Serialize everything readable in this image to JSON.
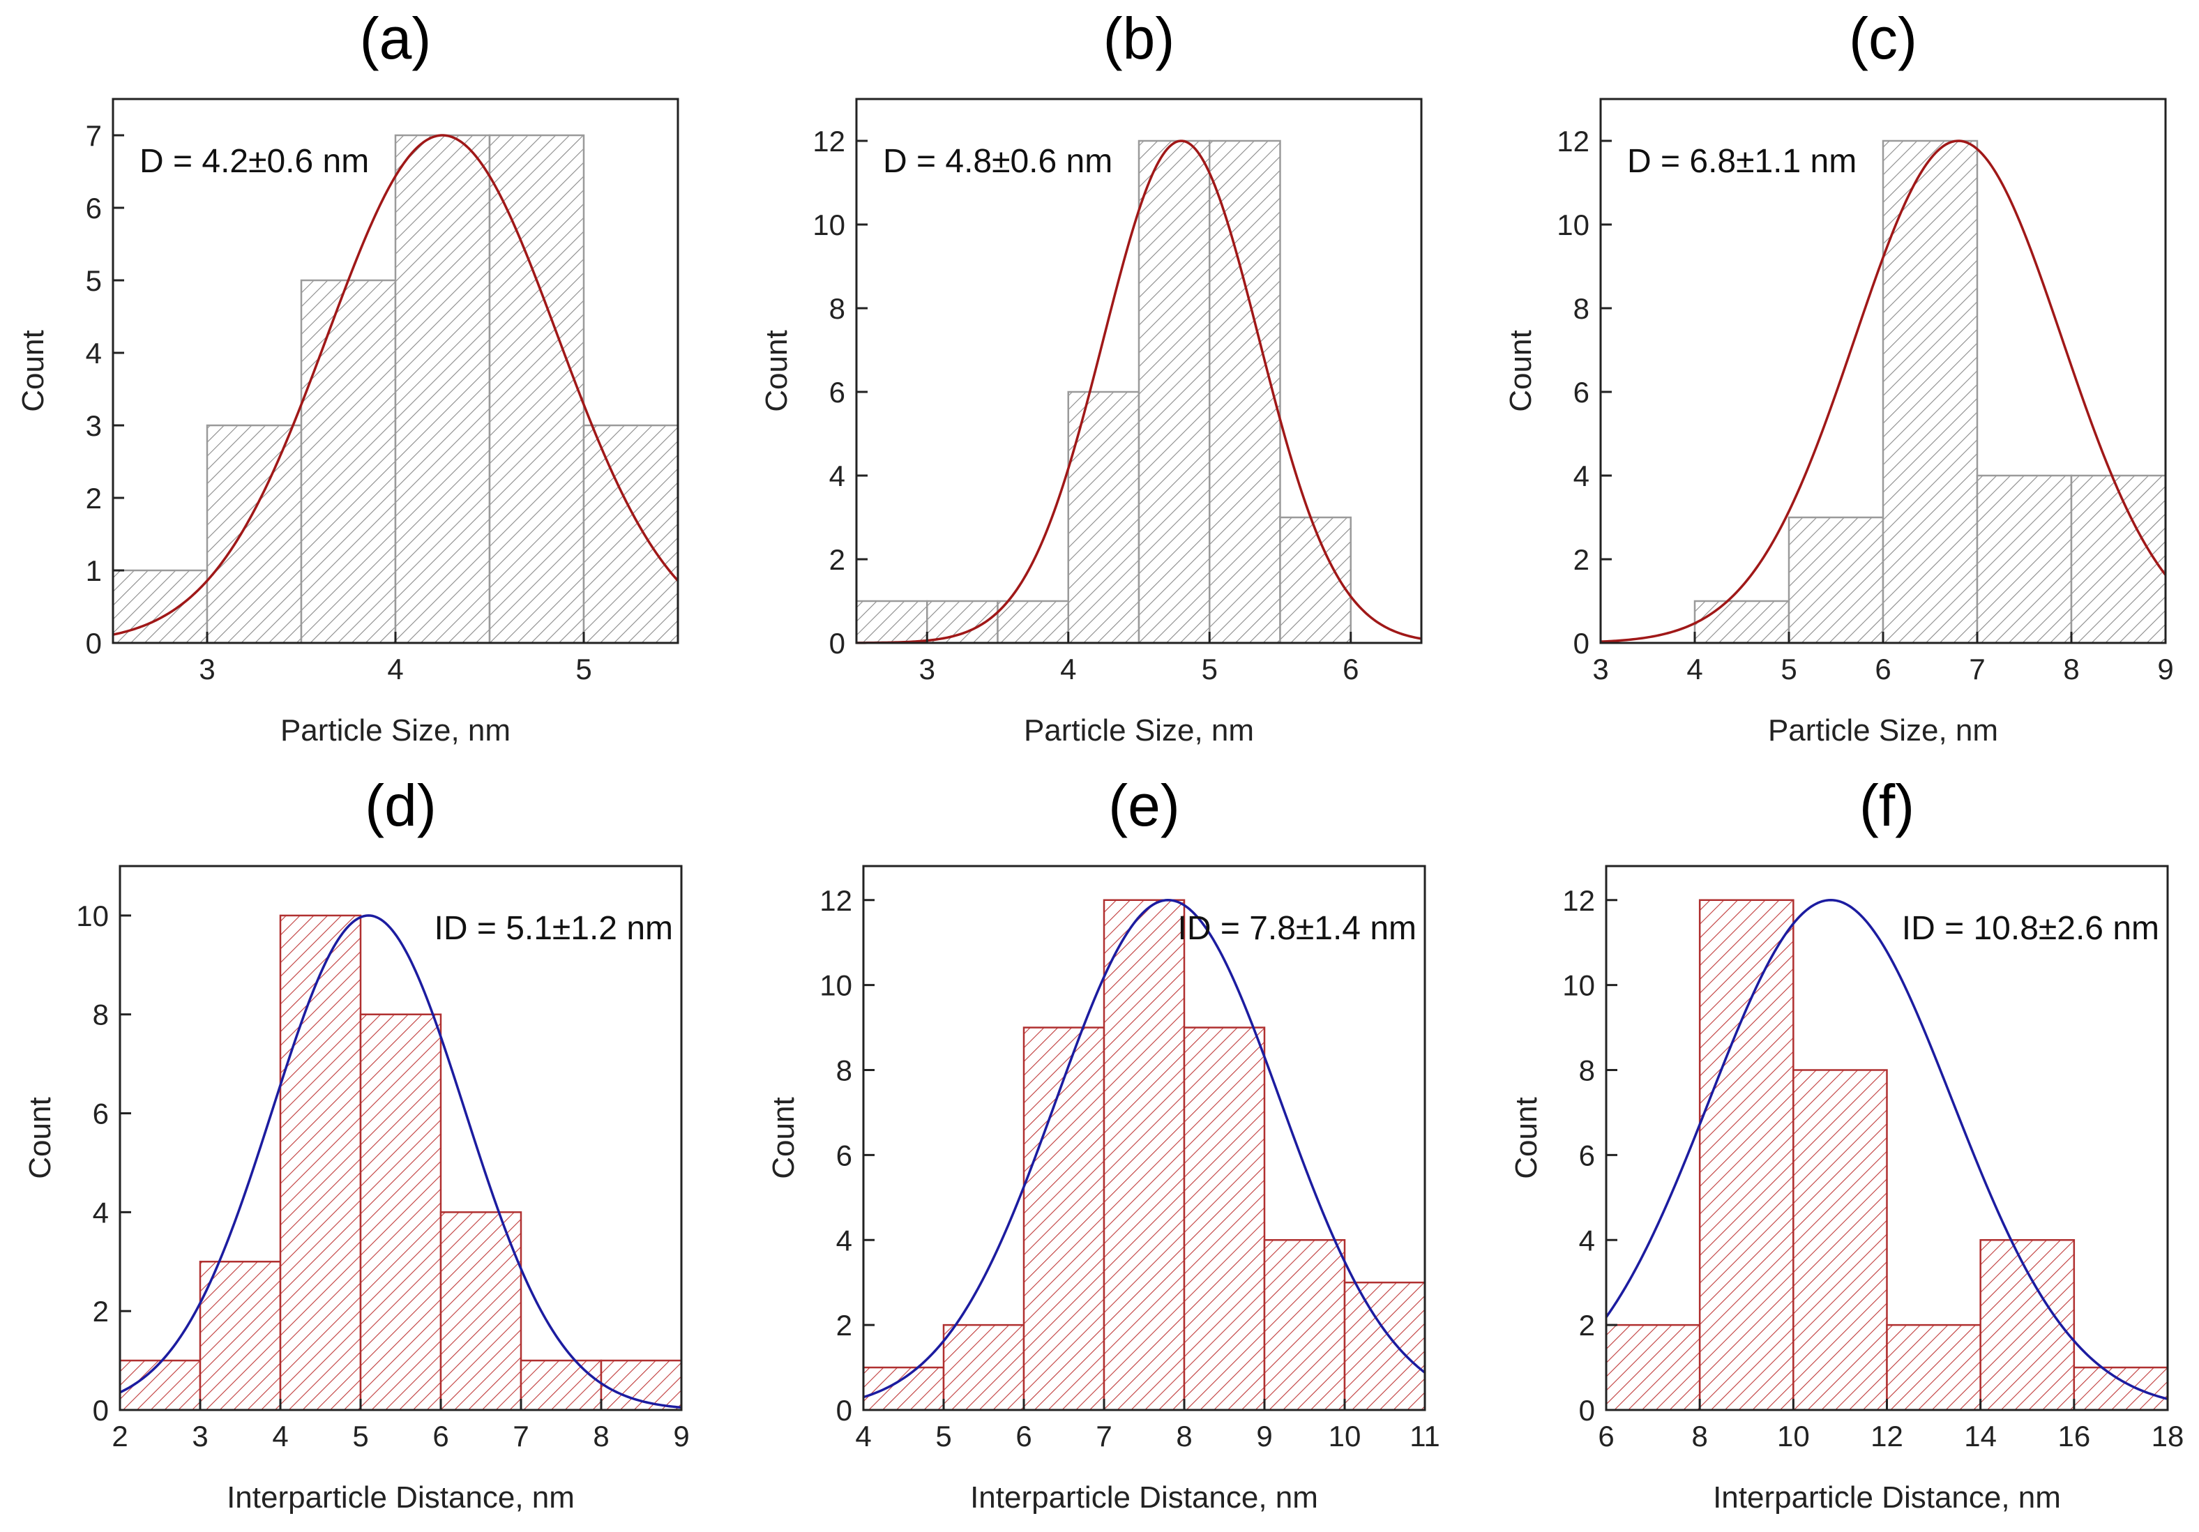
{
  "colors": {
    "gray_bar_edge": "#9a9a9a",
    "gray_hatch": "#8a8a8a",
    "red_bar_edge": "#b03030",
    "red_hatch": "#c03a3a",
    "red_fit": "#a01818",
    "blue_fit": "#1c1ca0"
  },
  "chart_data": [
    {
      "type": "bar",
      "panel": "(a)",
      "style": "gray",
      "fit_color": "red",
      "xlabel": "Particle Size, nm",
      "ylabel": "Count",
      "xlim": [
        2.5,
        5.5
      ],
      "ylim": [
        0,
        7.5
      ],
      "xticks": [
        3,
        4,
        5
      ],
      "yticks": [
        0,
        1,
        2,
        3,
        4,
        5,
        6,
        7
      ],
      "bin_width": 0.5,
      "bins": [
        {
          "x": 2.5,
          "count": 1
        },
        {
          "x": 3.0,
          "count": 3
        },
        {
          "x": 3.5,
          "count": 5
        },
        {
          "x": 4.0,
          "count": 7
        },
        {
          "x": 4.5,
          "count": 7
        },
        {
          "x": 5.0,
          "count": 3
        }
      ],
      "fit": {
        "mean": 4.25,
        "sigma": 0.61,
        "amplitude": 7
      },
      "annotation": "D = 4.2±0.6 nm",
      "annotation_position": "top-left"
    },
    {
      "type": "bar",
      "panel": "(b)",
      "style": "gray",
      "fit_color": "red",
      "xlabel": "Particle Size, nm",
      "ylabel": "Count",
      "xlim": [
        2.5,
        6.5
      ],
      "ylim": [
        0,
        13
      ],
      "xticks": [
        3,
        4,
        5,
        6
      ],
      "yticks": [
        0,
        2,
        4,
        6,
        8,
        10,
        12
      ],
      "bin_width": 0.5,
      "bins": [
        {
          "x": 2.5,
          "count": 1
        },
        {
          "x": 3.0,
          "count": 1
        },
        {
          "x": 3.5,
          "count": 1
        },
        {
          "x": 4.0,
          "count": 6
        },
        {
          "x": 4.5,
          "count": 12
        },
        {
          "x": 5.0,
          "count": 12
        },
        {
          "x": 5.5,
          "count": 3
        }
      ],
      "fit": {
        "mean": 4.8,
        "sigma": 0.55,
        "amplitude": 12
      },
      "annotation": "D = 4.8±0.6 nm",
      "annotation_position": "top-left"
    },
    {
      "type": "bar",
      "panel": "(c)",
      "style": "gray",
      "fit_color": "red",
      "xlabel": "Particle Size, nm",
      "ylabel": "Count",
      "xlim": [
        3,
        9
      ],
      "ylim": [
        0,
        13
      ],
      "xticks": [
        3,
        4,
        5,
        6,
        7,
        8,
        9
      ],
      "yticks": [
        0,
        2,
        4,
        6,
        8,
        10,
        12
      ],
      "bin_width": 1,
      "bins": [
        {
          "x": 4,
          "count": 1
        },
        {
          "x": 5,
          "count": 3
        },
        {
          "x": 6,
          "count": 12
        },
        {
          "x": 7,
          "count": 4
        },
        {
          "x": 8,
          "count": 4
        }
      ],
      "fit": {
        "mean": 6.8,
        "sigma": 1.1,
        "amplitude": 12
      },
      "annotation": "D = 6.8±1.1 nm",
      "annotation_position": "top-left"
    },
    {
      "type": "bar",
      "panel": "(d)",
      "style": "red",
      "fit_color": "blue",
      "xlabel": "Interparticle Distance, nm",
      "ylabel": "Count",
      "xlim": [
        2,
        9
      ],
      "ylim": [
        0,
        11
      ],
      "xticks": [
        2,
        3,
        4,
        5,
        6,
        7,
        8,
        9
      ],
      "yticks": [
        0,
        2,
        4,
        6,
        8,
        10
      ],
      "bin_width": 1,
      "bins": [
        {
          "x": 2,
          "count": 1
        },
        {
          "x": 3,
          "count": 3
        },
        {
          "x": 4,
          "count": 10
        },
        {
          "x": 5,
          "count": 8
        },
        {
          "x": 6,
          "count": 4
        },
        {
          "x": 7,
          "count": 1
        },
        {
          "x": 8,
          "count": 1
        }
      ],
      "fit": {
        "mean": 5.1,
        "sigma": 1.2,
        "amplitude": 10
      },
      "annotation": "ID = 5.1±1.2 nm",
      "annotation_position": "top-right"
    },
    {
      "type": "bar",
      "panel": "(e)",
      "style": "red",
      "fit_color": "blue",
      "xlabel": "Interparticle Distance, nm",
      "ylabel": "Count",
      "xlim": [
        4,
        11
      ],
      "ylim": [
        0,
        12.8
      ],
      "xticks": [
        4,
        5,
        6,
        7,
        8,
        9,
        10,
        11
      ],
      "yticks": [
        0,
        2,
        4,
        6,
        8,
        10,
        12
      ],
      "bin_width": 1,
      "bins": [
        {
          "x": 4,
          "count": 1
        },
        {
          "x": 5,
          "count": 2
        },
        {
          "x": 6,
          "count": 9
        },
        {
          "x": 7,
          "count": 12
        },
        {
          "x": 8,
          "count": 9
        },
        {
          "x": 9,
          "count": 4
        },
        {
          "x": 10,
          "count": 3
        }
      ],
      "fit": {
        "mean": 7.8,
        "sigma": 1.4,
        "amplitude": 12
      },
      "annotation": "ID = 7.8±1.4 nm",
      "annotation_position": "top-right"
    },
    {
      "type": "bar",
      "panel": "(f)",
      "style": "red",
      "fit_color": "blue",
      "xlabel": "Interparticle Distance, nm",
      "ylabel": "Count",
      "xlim": [
        6,
        18
      ],
      "ylim": [
        0,
        12.8
      ],
      "xticks": [
        6,
        8,
        10,
        12,
        14,
        16,
        18
      ],
      "yticks": [
        0,
        2,
        4,
        6,
        8,
        10,
        12
      ],
      "bin_width": 2,
      "bins": [
        {
          "x": 6,
          "count": 2
        },
        {
          "x": 8,
          "count": 12
        },
        {
          "x": 10,
          "count": 8
        },
        {
          "x": 12,
          "count": 2
        },
        {
          "x": 14,
          "count": 4
        },
        {
          "x": 16,
          "count": 1
        }
      ],
      "fit": {
        "mean": 10.8,
        "sigma": 2.6,
        "amplitude": 12
      },
      "annotation": "ID = 10.8±2.6 nm",
      "annotation_position": "top-right"
    }
  ]
}
